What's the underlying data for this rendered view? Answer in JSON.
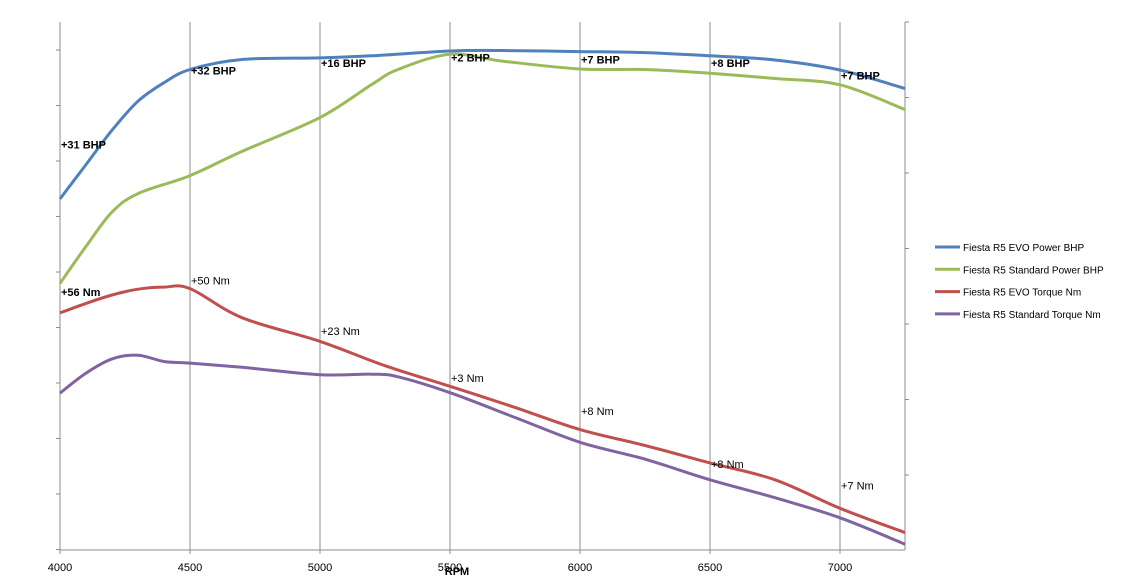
{
  "chart_data": {
    "type": "line",
    "title": "",
    "xlabel": "RPM",
    "ylabel": "",
    "xlim": [
      4000,
      7250
    ],
    "ylim": [
      0,
      100
    ],
    "right_ylim": [
      0,
      100
    ],
    "x_ticks": [
      4000,
      4500,
      5000,
      5500,
      6000,
      6500,
      7000
    ],
    "x_tick_labels": [
      "4000",
      "4500",
      "5000",
      "5500",
      "6000",
      "6500",
      "7000"
    ],
    "grid": "vertical",
    "legend_position": "right",
    "series": [
      {
        "name": "Fiesta R5 EVO Power BHP",
        "color": "#4F81BD",
        "x": [
          4000,
          4100,
          4200,
          4300,
          4400,
          4500,
          4700,
          5000,
          5200,
          5500,
          5700,
          6000,
          6250,
          6500,
          6750,
          7000,
          7250
        ],
        "values": [
          66.5,
          73,
          79.5,
          85,
          88.5,
          91,
          92.9,
          93.2,
          93.6,
          94.5,
          94.6,
          94.4,
          94.2,
          93.6,
          92.8,
          90.9,
          87.4
        ]
      },
      {
        "name": "Fiesta R5 Standard Power BHP",
        "color": "#9BBB59",
        "x": [
          4000,
          4100,
          4200,
          4300,
          4500,
          4700,
          5000,
          5200,
          5300,
          5500,
          5700,
          6000,
          6250,
          6500,
          6750,
          7000,
          7250
        ],
        "values": [
          50.5,
          57.5,
          64,
          67.5,
          70.9,
          75.5,
          81.9,
          88.2,
          91,
          93.9,
          92.6,
          91.1,
          91,
          90.3,
          89.3,
          88.1,
          83.4
        ]
      },
      {
        "name": "Fiesta R5 EVO Torque Nm",
        "color": "#C0504D",
        "x": [
          4000,
          4100,
          4200,
          4300,
          4400,
          4500,
          4700,
          5000,
          5250,
          5500,
          5750,
          6000,
          6250,
          6500,
          6750,
          7000,
          7250
        ],
        "values": [
          44.9,
          46.7,
          48.3,
          49.4,
          49.8,
          49.5,
          44,
          39.5,
          34.9,
          31,
          27,
          22.8,
          19.8,
          16.5,
          13.3,
          7.9,
          3.3
        ]
      },
      {
        "name": "Fiesta R5 Standard Torque Nm",
        "color": "#8064A2",
        "x": [
          4000,
          4100,
          4200,
          4300,
          4400,
          4500,
          4700,
          5000,
          5200,
          5300,
          5500,
          5750,
          6000,
          6250,
          6500,
          6750,
          7000,
          7250
        ],
        "values": [
          29.7,
          33.5,
          36.2,
          36.9,
          35.7,
          35.4,
          34.6,
          33.2,
          33.3,
          32.8,
          29.8,
          25.1,
          20.4,
          17.2,
          13.3,
          9.9,
          6.1,
          1.1
        ]
      }
    ],
    "annotations": [
      {
        "text": "+31 BHP",
        "x": 4000,
        "y": 76.8,
        "bold": true
      },
      {
        "text": "+32 BHP",
        "x": 4500,
        "y": 90.8,
        "bold": true
      },
      {
        "text": "+16 BHP",
        "x": 5000,
        "y": 92.2,
        "bold": true
      },
      {
        "text": "+2 BHP",
        "x": 5500,
        "y": 93.3,
        "bold": true
      },
      {
        "text": "+7 BHP",
        "x": 6000,
        "y": 92.9,
        "bold": true
      },
      {
        "text": "+8 BHP",
        "x": 6500,
        "y": 92.2,
        "bold": true
      },
      {
        "text": "+7 BHP",
        "x": 7000,
        "y": 89.9,
        "bold": true
      },
      {
        "text": "+56 Nm",
        "x": 4000,
        "y": 48.9,
        "bold": true
      },
      {
        "text": "+50 Nm",
        "x": 4500,
        "y": 51,
        "bold": false
      },
      {
        "text": "+23 Nm",
        "x": 5000,
        "y": 41.5,
        "bold": false
      },
      {
        "text": "+3 Nm",
        "x": 5500,
        "y": 32.6,
        "bold": false
      },
      {
        "text": "+8 Nm",
        "x": 6000,
        "y": 26.3,
        "bold": false
      },
      {
        "text": "+8 Nm",
        "x": 6500,
        "y": 16.3,
        "bold": false
      },
      {
        "text": "+7 Nm",
        "x": 7000,
        "y": 12.2,
        "bold": false
      }
    ]
  }
}
